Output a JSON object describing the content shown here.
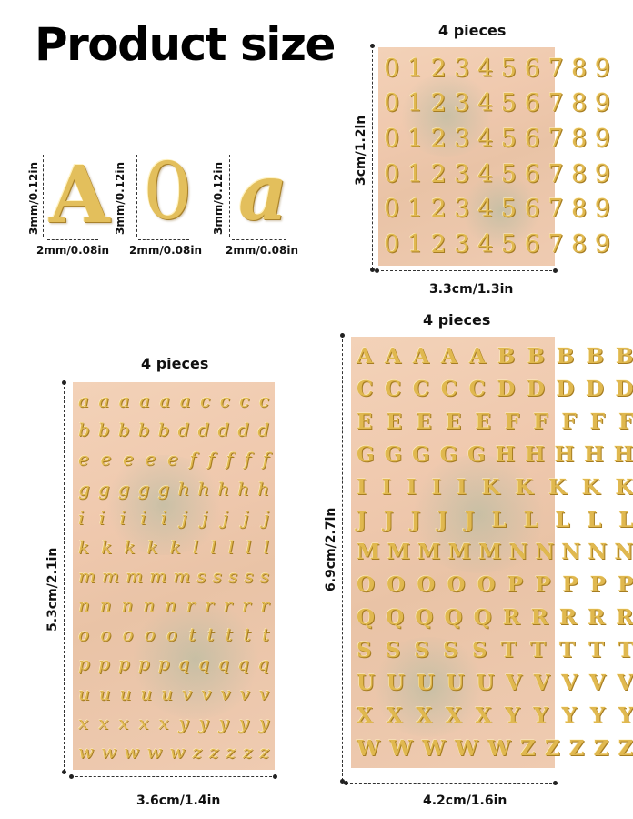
{
  "title": "Product size",
  "samples": [
    {
      "char": "A",
      "height_label": "3mm/0.12in",
      "width_label": "2mm/0.08in"
    },
    {
      "char": "0",
      "height_label": "3mm/0.12in",
      "width_label": "2mm/0.08in"
    },
    {
      "char": "a",
      "height_label": "3mm/0.12in",
      "width_label": "2mm/0.08in"
    }
  ],
  "sheets": {
    "numbers": {
      "pieces_label": "4 pieces",
      "height_label": "3cm/1.2in",
      "width_label": "3.3cm/1.3in",
      "rows": [
        "0123456789",
        "0123456789",
        "0123456789",
        "0123456789",
        "0123456789",
        "0123456789"
      ]
    },
    "lowercase": {
      "pieces_label": "4 pieces",
      "height_label": "5.3cm/2.1in",
      "width_label": "3.6cm/1.4in",
      "rows": [
        "aaaaaacccc",
        "bbbbbddddd",
        "eeeeefffff",
        "ggggghhhhh",
        "iiiiijjjjj",
        "kkkkklllll",
        "mmmmmsssss",
        "nnnnnrrrrr",
        "ooooottttt",
        "pppppqqqqq",
        "uuuuuvvvvv",
        "xxxxxyyyyy",
        "wwwwwzzzzz"
      ]
    },
    "uppercase": {
      "pieces_label": "4 pieces",
      "height_label": "6.9cm/2.7in",
      "width_label": "4.2cm/1.6in",
      "rows": [
        "AAAAABBBBB",
        "CCCCCDDDDD",
        "EEEEEFFFFF",
        "GGGGGHHHHH",
        "IIIIIKKKKK",
        "JJJJJLLLLL",
        "MMMMMNNNNN",
        "OOOOOPPPPP",
        "QQQQQRRRRR",
        "SSSSSTTTTT",
        "UUUUUVVVVV",
        "XXXXXYYYYY",
        "WWWWWZZZZZ"
      ]
    }
  },
  "colors": {
    "gold": "#e0b84f",
    "sheet_backing": "#efc8ad",
    "dimension_line": "#333333"
  }
}
